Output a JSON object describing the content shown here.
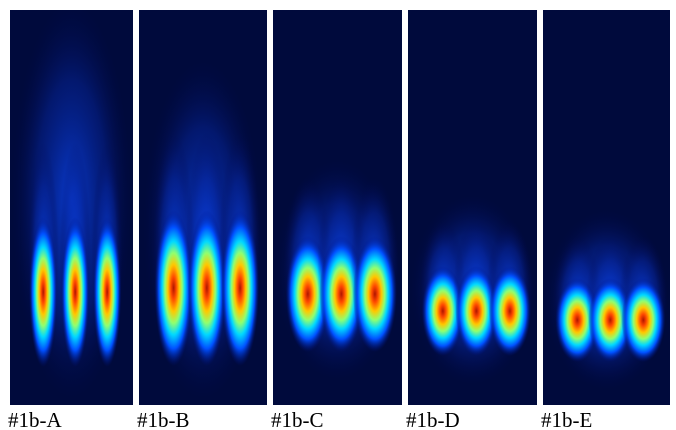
{
  "panels": [
    {
      "label": "#1b-A"
    },
    {
      "label": "#1b-B"
    },
    {
      "label": "#1b-C"
    },
    {
      "label": "#1b-D"
    },
    {
      "label": "#1b-E"
    }
  ]
}
